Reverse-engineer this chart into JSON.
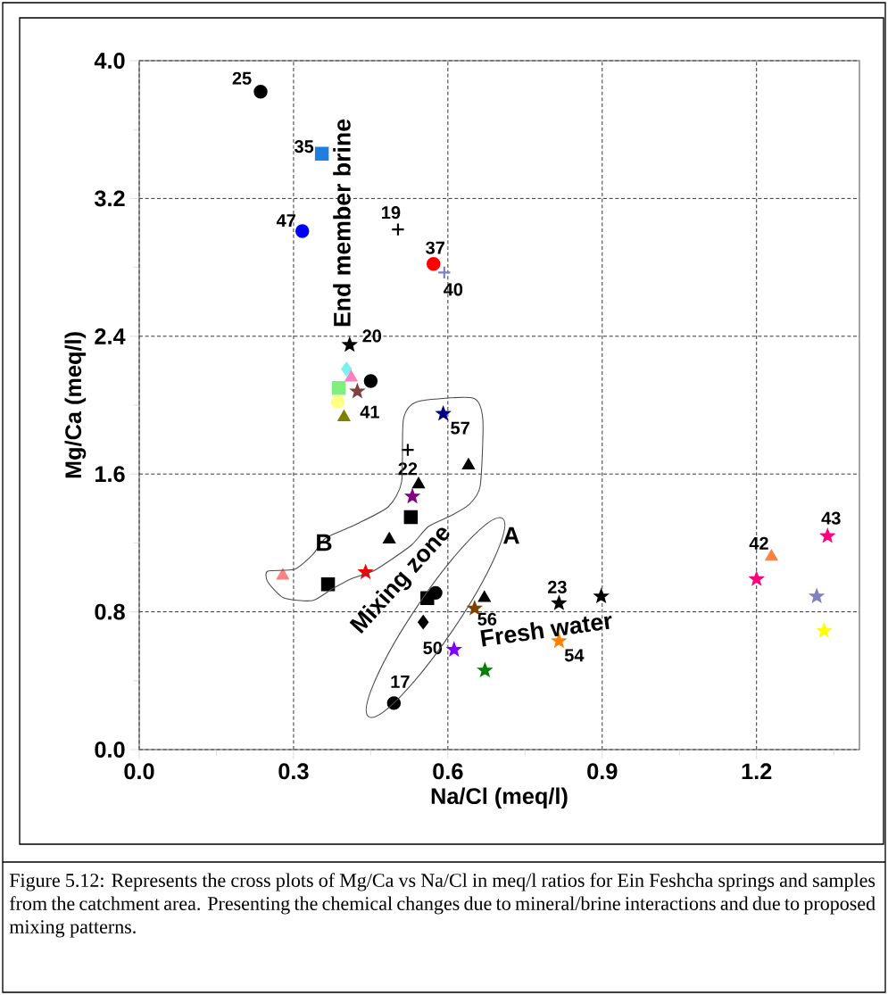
{
  "chart_data": {
    "type": "scatter",
    "xlabel": "Na/Cl (meq/l)",
    "ylabel": "Mg/Ca (meq/l)",
    "xlim": [
      0,
      1.4
    ],
    "ylim": [
      0,
      4
    ],
    "xticks": [
      {
        "value": 0,
        "label": "0.0"
      },
      {
        "value": 0.15,
        "label": null
      },
      0.3,
      {
        "value": 0.45,
        "label": null
      },
      0.6,
      {
        "value": 0.75,
        "label": null
      },
      0.9,
      {
        "value": 1.05,
        "label": null
      },
      1.2,
      {
        "value": 1.35,
        "label": null
      }
    ],
    "yticks": [
      {
        "value": 0,
        "label": "0.0"
      },
      {
        "value": 0.4,
        "label": null
      },
      0.8,
      {
        "value": 1.2,
        "label": null
      },
      1.6,
      {
        "value": 2.0,
        "label": null
      },
      2.4,
      {
        "value": 2.8,
        "label": null
      },
      3.2,
      {
        "value": 3.6,
        "label": null
      },
      {
        "value": 4,
        "label": "4.0"
      }
    ],
    "grid": true,
    "series": [
      {
        "color": "#000000",
        "marker": "circle",
        "x": [
          0.236
        ],
        "values": [
          3.82
        ]
      },
      {
        "color": "#1e7fe0",
        "marker": "square",
        "x": [
          0.355
        ],
        "values": [
          3.46
        ]
      },
      {
        "color": "#0000ff",
        "marker": "circle",
        "x": [
          0.317
        ],
        "values": [
          3.01
        ]
      },
      {
        "color": "#000000",
        "marker": "cross",
        "x": [
          0.503
        ],
        "values": [
          3.02
        ]
      },
      {
        "color": "#ff0000",
        "marker": "circle",
        "x": [
          0.572
        ],
        "values": [
          2.82
        ]
      },
      {
        "color": "#7f7fbf",
        "marker": "cross",
        "x": [
          0.593
        ],
        "values": [
          2.77
        ]
      },
      {
        "color": "#000000",
        "marker": "star",
        "x": [
          0.409
        ],
        "values": [
          2.35
        ]
      },
      {
        "color": "#7fefef",
        "marker": "diamond",
        "x": [
          0.403
        ],
        "values": [
          2.21
        ]
      },
      {
        "color": "#000000",
        "marker": "circle",
        "x": [
          0.45
        ],
        "values": [
          2.14
        ]
      },
      {
        "color": "#ff80c0",
        "marker": "triangle",
        "x": [
          0.412
        ],
        "values": [
          2.16
        ]
      },
      {
        "color": "#80ef80",
        "marker": "square",
        "x": [
          0.388
        ],
        "values": [
          2.1
        ]
      },
      {
        "color": "#804040",
        "marker": "star",
        "x": [
          0.424
        ],
        "values": [
          2.08
        ]
      },
      {
        "color": "#ffff80",
        "marker": "circle",
        "x": [
          0.386
        ],
        "values": [
          2.02
        ]
      },
      {
        "color": "#808000",
        "marker": "triangle",
        "x": [
          0.398
        ],
        "values": [
          1.93
        ]
      },
      {
        "color": "#000080",
        "marker": "star",
        "x": [
          0.591
        ],
        "values": [
          1.95
        ]
      },
      {
        "color": "#000000",
        "marker": "cross",
        "x": [
          0.522
        ],
        "values": [
          1.74
        ]
      },
      {
        "color": "#000000",
        "marker": "triangle",
        "x": [
          0.64
        ],
        "values": [
          1.65
        ]
      },
      {
        "color": "#000000",
        "marker": "triangle",
        "x": [
          0.543
        ],
        "values": [
          1.54
        ]
      },
      {
        "color": "#800080",
        "marker": "star",
        "x": [
          0.531
        ],
        "values": [
          1.47
        ]
      },
      {
        "color": "#000000",
        "marker": "square",
        "x": [
          0.528
        ],
        "values": [
          1.35
        ]
      },
      {
        "color": "#000000",
        "marker": "triangle",
        "x": [
          0.486
        ],
        "values": [
          1.22
        ]
      },
      {
        "color": "#ff8080",
        "marker": "triangle",
        "x": [
          0.279
        ],
        "values": [
          1.01
        ]
      },
      {
        "color": "#ff0000",
        "marker": "star",
        "x": [
          0.44
        ],
        "values": [
          1.03
        ]
      },
      {
        "color": "#000000",
        "marker": "square",
        "x": [
          0.367
        ],
        "values": [
          0.96
        ]
      },
      {
        "color": "#000000",
        "marker": "square",
        "x": [
          0.56
        ],
        "values": [
          0.88
        ]
      },
      {
        "color": "#000000",
        "marker": "circle",
        "x": [
          0.576
        ],
        "values": [
          0.91
        ]
      },
      {
        "color": "#000000",
        "marker": "diamond",
        "x": [
          0.552
        ],
        "values": [
          0.74
        ]
      },
      {
        "color": "#000000",
        "marker": "triangle",
        "x": [
          0.671
        ],
        "values": [
          0.88
        ]
      },
      {
        "color": "#804000",
        "marker": "star",
        "x": [
          0.652
        ],
        "values": [
          0.82
        ]
      },
      {
        "color": "#000000",
        "marker": "star",
        "x": [
          0.816
        ],
        "values": [
          0.85
        ]
      },
      {
        "color": "#000000",
        "marker": "star",
        "x": [
          0.898
        ],
        "values": [
          0.89
        ]
      },
      {
        "color": "#8000ff",
        "marker": "star",
        "x": [
          0.612
        ],
        "values": [
          0.58
        ]
      },
      {
        "color": "#008000",
        "marker": "star",
        "x": [
          0.672
        ],
        "values": [
          0.46
        ]
      },
      {
        "color": "#ff8000",
        "marker": "star",
        "x": [
          0.816
        ],
        "values": [
          0.63
        ]
      },
      {
        "color": "#000000",
        "marker": "circle",
        "x": [
          0.495
        ],
        "values": [
          0.27
        ]
      },
      {
        "color": "#ff8040",
        "marker": "triangle",
        "x": [
          1.229
        ],
        "values": [
          1.12
        ]
      },
      {
        "color": "#ff0080",
        "marker": "star",
        "x": [
          1.2
        ],
        "values": [
          0.99
        ]
      },
      {
        "color": "#ff0080",
        "marker": "star",
        "x": [
          1.338
        ],
        "values": [
          1.24
        ]
      },
      {
        "color": "#8080c0",
        "marker": "star",
        "x": [
          1.317
        ],
        "values": [
          0.89
        ]
      },
      {
        "color": "#ffff00",
        "marker": "star",
        "x": [
          1.331
        ],
        "values": [
          0.69
        ]
      }
    ],
    "annotations": [
      {
        "text": "25",
        "x": 0.236,
        "y": 3.82
      },
      {
        "text": "35",
        "x": 0.355,
        "y": 3.46
      },
      {
        "text": "47",
        "x": 0.317,
        "y": 3.01
      },
      {
        "text": "19",
        "x": 0.503,
        "y": 3.02
      },
      {
        "text": "37",
        "x": 0.572,
        "y": 2.82
      },
      {
        "text": "40",
        "x": 0.593,
        "y": 2.77
      },
      {
        "text": "20",
        "x": 0.409,
        "y": 2.35
      },
      {
        "text": "41",
        "x": 0.424,
        "y": 2.08
      },
      {
        "text": "57",
        "x": 0.591,
        "y": 1.95
      },
      {
        "text": "22",
        "x": 0.522,
        "y": 1.74
      },
      {
        "text": "23",
        "x": 0.816,
        "y": 0.85
      },
      {
        "text": "56",
        "x": 0.652,
        "y": 0.82
      },
      {
        "text": "50",
        "x": 0.612,
        "y": 0.58
      },
      {
        "text": "54",
        "x": 0.816,
        "y": 0.63
      },
      {
        "text": "17",
        "x": 0.495,
        "y": 0.27
      },
      {
        "text": "42",
        "x": 1.229,
        "y": 1.12
      },
      {
        "text": "43",
        "x": 1.338,
        "y": 1.24
      },
      "End member brine",
      "Mixing zone",
      "Fresh water",
      "A",
      "B",
      "Figure 5.12: Represents the cross plots of Mg/Ca vs Na/Cl in meq/l ratios for Ein Feshcha springs and samples from the catchment area. Presenting the chemical changes due to mineral/brine interactions and due to proposed mixing patterns."
    ]
  }
}
